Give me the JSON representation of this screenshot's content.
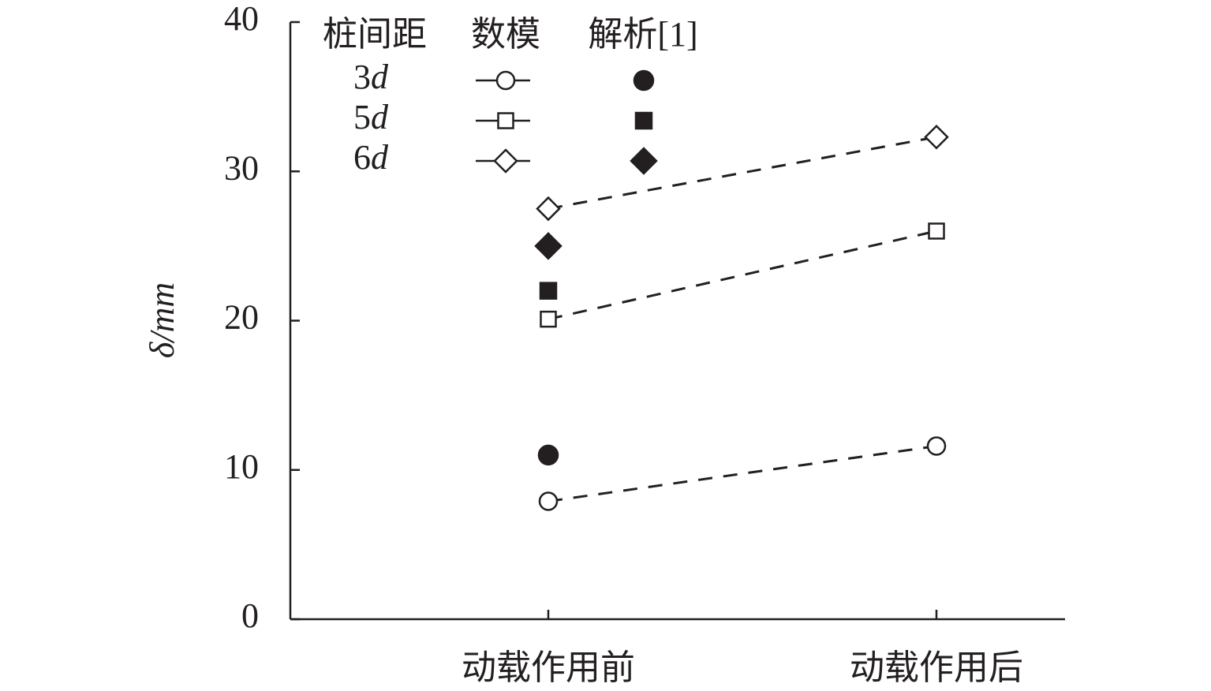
{
  "chart_data": {
    "type": "line",
    "ylabel": "δ/mm",
    "categories": [
      "动载作用前",
      "动载作用后"
    ],
    "ylim": [
      0,
      40
    ],
    "yticks": [
      0,
      10,
      20,
      30,
      40
    ],
    "legend_headers": [
      "桩间距",
      "数模",
      "解析[1]"
    ],
    "series": [
      {
        "name": "3d",
        "marker": "circle",
        "color": "#231f20",
        "values": [
          7.9,
          11.6
        ],
        "analytical_values": [
          11.0,
          null
        ]
      },
      {
        "name": "5d",
        "marker": "square",
        "color": "#231f20",
        "values": [
          20.1,
          26.0
        ],
        "analytical_values": [
          22.0,
          null
        ]
      },
      {
        "name": "6d",
        "marker": "diamond",
        "color": "#231f20",
        "values": [
          27.5,
          32.3
        ],
        "analytical_values": [
          25.0,
          null
        ]
      }
    ]
  }
}
